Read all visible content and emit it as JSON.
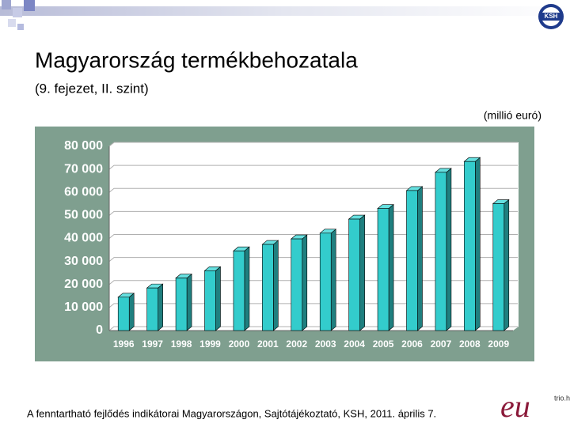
{
  "header": {
    "title": "Magyarország termékbehozatala",
    "subtitle": "(9. fejezet, II. szint)",
    "logo": "KSH"
  },
  "chart_data": {
    "type": "bar",
    "unit_label": "(millió euró)",
    "categories": [
      "1996",
      "1997",
      "1998",
      "1999",
      "2000",
      "2001",
      "2002",
      "2003",
      "2004",
      "2005",
      "2006",
      "2007",
      "2008",
      "2009"
    ],
    "values": [
      14500,
      18500,
      22800,
      26000,
      34600,
      37400,
      39800,
      42300,
      48400,
      53000,
      60800,
      68700,
      73400,
      55100
    ],
    "color": "#33cccc",
    "ylim": [
      0,
      80000
    ],
    "yticks": [
      0,
      {
        "value": 10000,
        "label": "10 000"
      },
      {
        "value": 20000,
        "label": "20 000"
      },
      {
        "value": 30000,
        "label": "30 000"
      },
      {
        "value": 40000,
        "label": "40 000"
      },
      {
        "value": 50000,
        "label": "50 000"
      },
      {
        "value": 60000,
        "label": "60 000"
      },
      {
        "value": 70000,
        "label": "70 000"
      },
      {
        "value": 80000,
        "label": "80 000"
      }
    ],
    "grid": true
  },
  "footer": {
    "source": "A fenntartható fejlődés indikátorai Magyarországon, Sajtótájékoztató, KSH, 2011. április 7.",
    "logo_text": "eu",
    "logo_sub": "trio.hu"
  }
}
